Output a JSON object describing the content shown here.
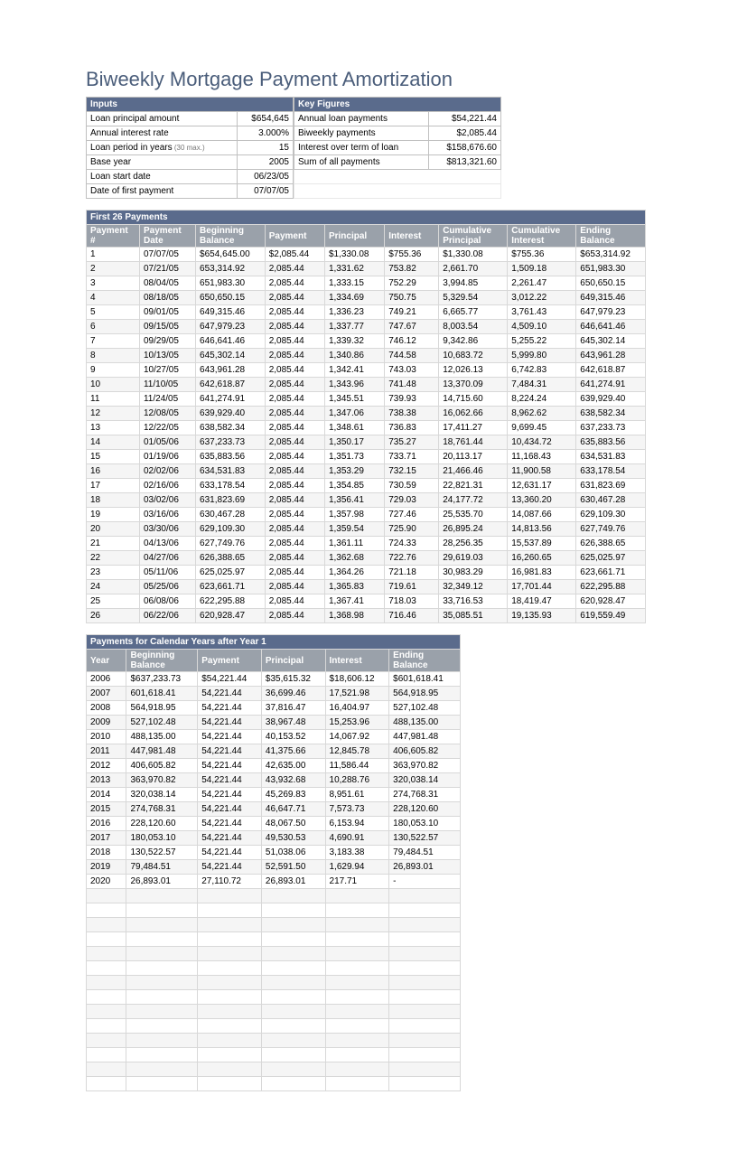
{
  "title": "Biweekly Mortgage Payment Amortization",
  "inputs": {
    "header": "Inputs",
    "rows": [
      {
        "label": "Loan principal amount",
        "value": "$654,645"
      },
      {
        "label": "Annual interest rate",
        "value": "3.000%"
      },
      {
        "label": "Loan period in years",
        "note": "(30 max.)",
        "value": "15"
      },
      {
        "label": "Base year",
        "value": "2005"
      },
      {
        "label": "Loan start date",
        "value": "06/23/05"
      },
      {
        "label": "Date of first payment",
        "value": "07/07/05"
      }
    ]
  },
  "keyfigures": {
    "header": "Key Figures",
    "rows": [
      {
        "label": "Annual loan payments",
        "value": "$54,221.44"
      },
      {
        "label": "Biweekly payments",
        "value": "$2,085.44"
      },
      {
        "label": "Interest over term of loan",
        "value": "$158,676.60"
      },
      {
        "label": "Sum of all payments",
        "value": "$813,321.60"
      }
    ]
  },
  "payments": {
    "header": "First 26 Payments",
    "columns": [
      "Payment #",
      "Payment Date",
      "Beginning Balance",
      "Payment",
      "Principal",
      "Interest",
      "Cumulative Principal",
      "Cumulative Interest",
      "Ending Balance"
    ],
    "rows": [
      [
        "1",
        "07/07/05",
        "$654,645.00",
        "$2,085.44",
        "$1,330.08",
        "$755.36",
        "$1,330.08",
        "$755.36",
        "$653,314.92"
      ],
      [
        "2",
        "07/21/05",
        "653,314.92",
        "2,085.44",
        "1,331.62",
        "753.82",
        "2,661.70",
        "1,509.18",
        "651,983.30"
      ],
      [
        "3",
        "08/04/05",
        "651,983.30",
        "2,085.44",
        "1,333.15",
        "752.29",
        "3,994.85",
        "2,261.47",
        "650,650.15"
      ],
      [
        "4",
        "08/18/05",
        "650,650.15",
        "2,085.44",
        "1,334.69",
        "750.75",
        "5,329.54",
        "3,012.22",
        "649,315.46"
      ],
      [
        "5",
        "09/01/05",
        "649,315.46",
        "2,085.44",
        "1,336.23",
        "749.21",
        "6,665.77",
        "3,761.43",
        "647,979.23"
      ],
      [
        "6",
        "09/15/05",
        "647,979.23",
        "2,085.44",
        "1,337.77",
        "747.67",
        "8,003.54",
        "4,509.10",
        "646,641.46"
      ],
      [
        "7",
        "09/29/05",
        "646,641.46",
        "2,085.44",
        "1,339.32",
        "746.12",
        "9,342.86",
        "5,255.22",
        "645,302.14"
      ],
      [
        "8",
        "10/13/05",
        "645,302.14",
        "2,085.44",
        "1,340.86",
        "744.58",
        "10,683.72",
        "5,999.80",
        "643,961.28"
      ],
      [
        "9",
        "10/27/05",
        "643,961.28",
        "2,085.44",
        "1,342.41",
        "743.03",
        "12,026.13",
        "6,742.83",
        "642,618.87"
      ],
      [
        "10",
        "11/10/05",
        "642,618.87",
        "2,085.44",
        "1,343.96",
        "741.48",
        "13,370.09",
        "7,484.31",
        "641,274.91"
      ],
      [
        "11",
        "11/24/05",
        "641,274.91",
        "2,085.44",
        "1,345.51",
        "739.93",
        "14,715.60",
        "8,224.24",
        "639,929.40"
      ],
      [
        "12",
        "12/08/05",
        "639,929.40",
        "2,085.44",
        "1,347.06",
        "738.38",
        "16,062.66",
        "8,962.62",
        "638,582.34"
      ],
      [
        "13",
        "12/22/05",
        "638,582.34",
        "2,085.44",
        "1,348.61",
        "736.83",
        "17,411.27",
        "9,699.45",
        "637,233.73"
      ],
      [
        "14",
        "01/05/06",
        "637,233.73",
        "2,085.44",
        "1,350.17",
        "735.27",
        "18,761.44",
        "10,434.72",
        "635,883.56"
      ],
      [
        "15",
        "01/19/06",
        "635,883.56",
        "2,085.44",
        "1,351.73",
        "733.71",
        "20,113.17",
        "11,168.43",
        "634,531.83"
      ],
      [
        "16",
        "02/02/06",
        "634,531.83",
        "2,085.44",
        "1,353.29",
        "732.15",
        "21,466.46",
        "11,900.58",
        "633,178.54"
      ],
      [
        "17",
        "02/16/06",
        "633,178.54",
        "2,085.44",
        "1,354.85",
        "730.59",
        "22,821.31",
        "12,631.17",
        "631,823.69"
      ],
      [
        "18",
        "03/02/06",
        "631,823.69",
        "2,085.44",
        "1,356.41",
        "729.03",
        "24,177.72",
        "13,360.20",
        "630,467.28"
      ],
      [
        "19",
        "03/16/06",
        "630,467.28",
        "2,085.44",
        "1,357.98",
        "727.46",
        "25,535.70",
        "14,087.66",
        "629,109.30"
      ],
      [
        "20",
        "03/30/06",
        "629,109.30",
        "2,085.44",
        "1,359.54",
        "725.90",
        "26,895.24",
        "14,813.56",
        "627,749.76"
      ],
      [
        "21",
        "04/13/06",
        "627,749.76",
        "2,085.44",
        "1,361.11",
        "724.33",
        "28,256.35",
        "15,537.89",
        "626,388.65"
      ],
      [
        "22",
        "04/27/06",
        "626,388.65",
        "2,085.44",
        "1,362.68",
        "722.76",
        "29,619.03",
        "16,260.65",
        "625,025.97"
      ],
      [
        "23",
        "05/11/06",
        "625,025.97",
        "2,085.44",
        "1,364.26",
        "721.18",
        "30,983.29",
        "16,981.83",
        "623,661.71"
      ],
      [
        "24",
        "05/25/06",
        "623,661.71",
        "2,085.44",
        "1,365.83",
        "719.61",
        "32,349.12",
        "17,701.44",
        "622,295.88"
      ],
      [
        "25",
        "06/08/06",
        "622,295.88",
        "2,085.44",
        "1,367.41",
        "718.03",
        "33,716.53",
        "18,419.47",
        "620,928.47"
      ],
      [
        "26",
        "06/22/06",
        "620,928.47",
        "2,085.44",
        "1,368.98",
        "716.46",
        "35,085.51",
        "19,135.93",
        "619,559.49"
      ]
    ]
  },
  "yearly": {
    "header": "Payments for Calendar Years after Year 1",
    "columns": [
      "Year",
      "Beginning Balance",
      "Payment",
      "Principal",
      "Interest",
      "Ending Balance"
    ],
    "rows": [
      [
        "2006",
        "$637,233.73",
        "$54,221.44",
        "$35,615.32",
        "$18,606.12",
        "$601,618.41"
      ],
      [
        "2007",
        "601,618.41",
        "54,221.44",
        "36,699.46",
        "17,521.98",
        "564,918.95"
      ],
      [
        "2008",
        "564,918.95",
        "54,221.44",
        "37,816.47",
        "16,404.97",
        "527,102.48"
      ],
      [
        "2009",
        "527,102.48",
        "54,221.44",
        "38,967.48",
        "15,253.96",
        "488,135.00"
      ],
      [
        "2010",
        "488,135.00",
        "54,221.44",
        "40,153.52",
        "14,067.92",
        "447,981.48"
      ],
      [
        "2011",
        "447,981.48",
        "54,221.44",
        "41,375.66",
        "12,845.78",
        "406,605.82"
      ],
      [
        "2012",
        "406,605.82",
        "54,221.44",
        "42,635.00",
        "11,586.44",
        "363,970.82"
      ],
      [
        "2013",
        "363,970.82",
        "54,221.44",
        "43,932.68",
        "10,288.76",
        "320,038.14"
      ],
      [
        "2014",
        "320,038.14",
        "54,221.44",
        "45,269.83",
        "8,951.61",
        "274,768.31"
      ],
      [
        "2015",
        "274,768.31",
        "54,221.44",
        "46,647.71",
        "7,573.73",
        "228,120.60"
      ],
      [
        "2016",
        "228,120.60",
        "54,221.44",
        "48,067.50",
        "6,153.94",
        "180,053.10"
      ],
      [
        "2017",
        "180,053.10",
        "54,221.44",
        "49,530.53",
        "4,690.91",
        "130,522.57"
      ],
      [
        "2018",
        "130,522.57",
        "54,221.44",
        "51,038.06",
        "3,183.38",
        "79,484.51"
      ],
      [
        "2019",
        "79,484.51",
        "54,221.44",
        "52,591.50",
        "1,629.94",
        "26,893.01"
      ],
      [
        "2020",
        "26,893.01",
        "27,110.72",
        "26,893.01",
        "217.71",
        "-"
      ]
    ],
    "empty_rows": 14
  },
  "col_widths": {
    "payments": [
      55,
      60,
      75,
      65,
      65,
      60,
      75,
      75,
      75
    ],
    "yearly": [
      45,
      80,
      70,
      70,
      70,
      80
    ]
  },
  "colors": {
    "title": "#4a5d7a",
    "section_bg": "#5a6b8c",
    "colhdr_bg": "#9aa1aa",
    "border": "#c0c0c0",
    "alt_row": "#f5f5f5"
  }
}
